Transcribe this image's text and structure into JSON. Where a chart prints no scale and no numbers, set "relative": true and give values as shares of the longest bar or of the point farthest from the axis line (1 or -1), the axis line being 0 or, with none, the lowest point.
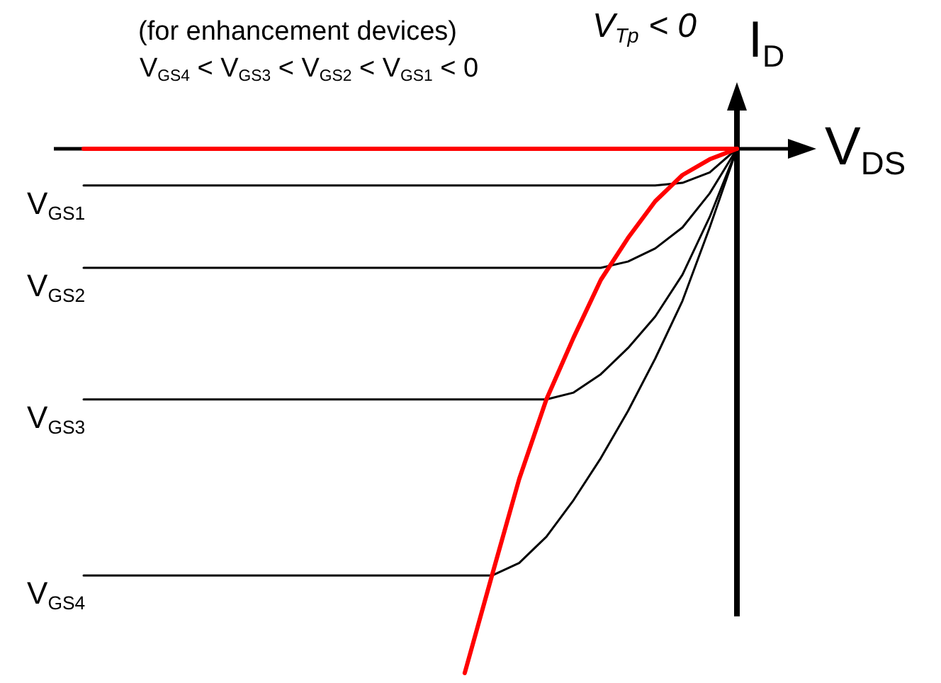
{
  "chart_data": {
    "type": "line",
    "relative": true,
    "xlabel": "V$_{DS}$",
    "ylabel": "I$_{D}$",
    "legend": false,
    "annotations": [
      "(for enhancement devices)",
      "V$_{GS4}$ < V$_{GS3}$ < V$_{GS2}$ < V$_{GS1}$ < 0",
      "V$_{Tp}$ < 0"
    ],
    "categories": [
      null,
      null,
      null,
      null,
      null,
      null,
      null,
      null,
      null,
      null,
      null,
      null,
      null,
      null,
      null,
      null,
      null,
      null,
      null,
      null,
      null,
      null,
      null,
      null,
      null
    ],
    "series": [
      {
        "name": "V$_{GS1}$",
        "color": "#000000",
        "values": [
          -0.07,
          -0.07,
          -0.07,
          -0.07,
          -0.07,
          -0.07,
          -0.07,
          -0.07,
          -0.07,
          -0.07,
          -0.07,
          -0.07,
          -0.07,
          -0.07,
          -0.07,
          -0.07,
          -0.07,
          -0.07,
          -0.07,
          -0.07,
          -0.07,
          -0.07,
          -0.065,
          -0.045,
          0
        ]
      },
      {
        "name": "V$_{GS2}$",
        "color": "#000000",
        "values": [
          -0.227,
          -0.227,
          -0.227,
          -0.227,
          -0.227,
          -0.227,
          -0.227,
          -0.227,
          -0.227,
          -0.227,
          -0.227,
          -0.227,
          -0.227,
          -0.227,
          -0.227,
          -0.227,
          -0.227,
          -0.227,
          -0.227,
          -0.227,
          -0.215,
          -0.19,
          -0.15,
          -0.085,
          0
        ]
      },
      {
        "name": "V$_{GS3}$",
        "color": "#000000",
        "values": [
          -0.478,
          -0.478,
          -0.478,
          -0.478,
          -0.478,
          -0.478,
          -0.478,
          -0.478,
          -0.478,
          -0.478,
          -0.478,
          -0.478,
          -0.478,
          -0.478,
          -0.478,
          -0.478,
          -0.478,
          -0.478,
          -0.465,
          -0.43,
          -0.38,
          -0.32,
          -0.24,
          -0.13,
          0
        ]
      },
      {
        "name": "V$_{GS4}$",
        "color": "#000000",
        "values": [
          -0.814,
          -0.814,
          -0.814,
          -0.814,
          -0.814,
          -0.814,
          -0.814,
          -0.814,
          -0.814,
          -0.814,
          -0.814,
          -0.814,
          -0.814,
          -0.814,
          -0.814,
          -0.814,
          -0.79,
          -0.74,
          -0.67,
          -0.59,
          -0.5,
          -0.4,
          -0.29,
          -0.15,
          0
        ]
      },
      {
        "color": "#ff0000",
        "values": [
          null,
          null,
          null,
          null,
          null,
          null,
          null,
          null,
          null,
          null,
          null,
          null,
          null,
          null,
          -1,
          -0.814,
          -0.63,
          -0.478,
          -0.36,
          -0.25,
          -0.17,
          -0.1,
          -0.05,
          -0.02,
          0
        ]
      },
      {
        "color": "#ff0000",
        "values": [
          0,
          0,
          0,
          0,
          0,
          0,
          0,
          0,
          0,
          0,
          0,
          0,
          0,
          0,
          0,
          0,
          0,
          0,
          0,
          0,
          0,
          0,
          0,
          0,
          0
        ]
      }
    ]
  }
}
